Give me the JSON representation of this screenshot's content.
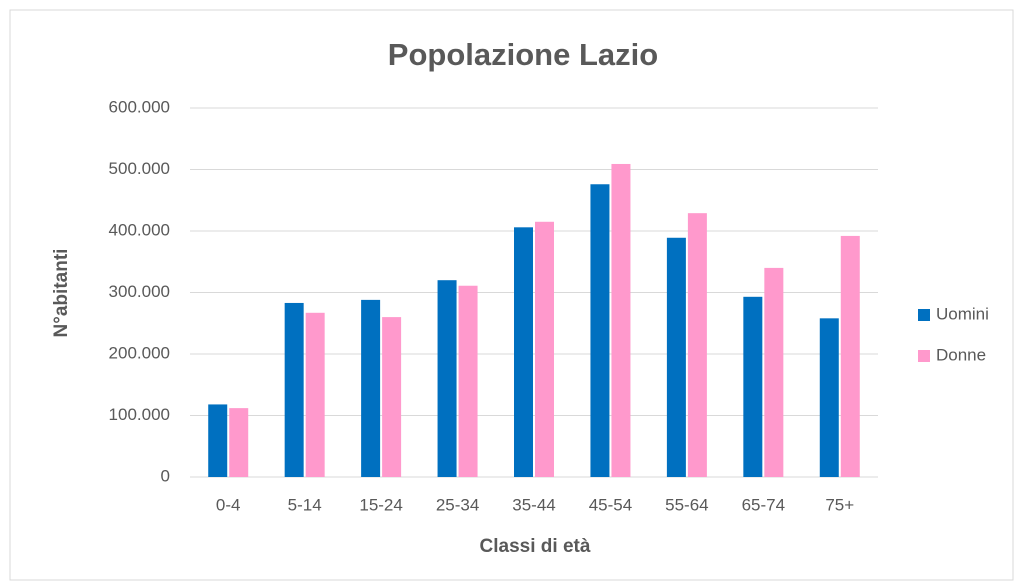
{
  "chart_data": {
    "type": "bar",
    "title": "Popolazione Lazio",
    "x_label": "Classi di età",
    "y_label": "N°abitanti",
    "categories": [
      "0-4",
      "5-14",
      "15-24",
      "25-34",
      "35-44",
      "45-54",
      "55-64",
      "65-74",
      "75+"
    ],
    "series": [
      {
        "name": "Uomini",
        "color": "#0070c0",
        "values": [
          118000,
          283000,
          288000,
          320000,
          406000,
          476000,
          389000,
          293000,
          258000
        ]
      },
      {
        "name": "Donne",
        "color": "#ff99cc",
        "values": [
          112000,
          267000,
          260000,
          311000,
          415000,
          509000,
          429000,
          340000,
          392000
        ]
      }
    ],
    "ylim": [
      0,
      600000
    ],
    "yticks": [
      0,
      {
        "value": 100000,
        "label": "100.000"
      },
      {
        "value": 200000,
        "label": "200.000"
      },
      {
        "value": 300000,
        "label": "300.000"
      },
      {
        "value": 400000,
        "label": "400.000"
      },
      {
        "value": 500000,
        "label": "500.000"
      },
      {
        "value": 600000,
        "label": "600.000"
      }
    ],
    "grid": true,
    "legend": "right"
  }
}
